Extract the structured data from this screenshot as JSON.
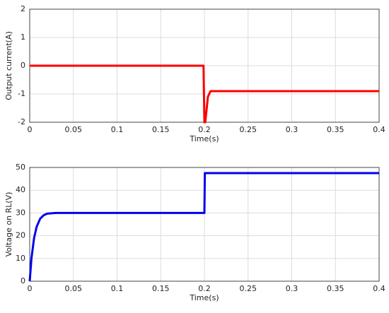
{
  "chart_data": [
    {
      "type": "line",
      "xlabel": "Time(s)",
      "ylabel": "Output current(A)",
      "x": [
        0,
        0.199,
        0.2,
        0.201,
        0.204,
        0.207,
        0.4
      ],
      "series": [
        {
          "color": "#ff0000",
          "values": [
            0,
            0,
            -2,
            -2,
            -1.1,
            -0.9,
            -0.9
          ]
        }
      ],
      "xlim": [
        0,
        0.4
      ],
      "ylim": [
        -2,
        2
      ],
      "xticks": [
        0,
        0.05,
        0.1,
        0.15,
        0.2,
        0.25,
        0.3,
        0.35,
        0.4
      ],
      "yticks": [
        -2,
        -1,
        0,
        1,
        2
      ],
      "grid": true
    },
    {
      "type": "line",
      "xlabel": "Time(s)",
      "ylabel": "Voltage on RL(V)",
      "x": [
        0,
        0.002,
        0.005,
        0.008,
        0.012,
        0.016,
        0.02,
        0.03,
        0.2,
        0.2005,
        0.4
      ],
      "series": [
        {
          "color": "#0000ee",
          "values": [
            0,
            10,
            19,
            24,
            27.5,
            29,
            29.7,
            30,
            30,
            47.5,
            47.5
          ]
        }
      ],
      "xlim": [
        0,
        0.4
      ],
      "ylim": [
        0,
        50
      ],
      "xticks": [
        0,
        0.05,
        0.1,
        0.15,
        0.2,
        0.25,
        0.3,
        0.35,
        0.4
      ],
      "yticks": [
        0,
        10,
        20,
        30,
        40,
        50
      ],
      "grid": true
    }
  ]
}
